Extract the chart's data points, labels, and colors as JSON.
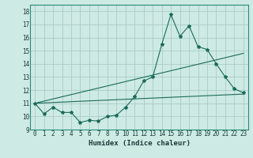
{
  "title": "",
  "xlabel": "Humidex (Indice chaleur)",
  "xlim": [
    -0.5,
    23.5
  ],
  "ylim": [
    9,
    18.5
  ],
  "xticks": [
    0,
    1,
    2,
    3,
    4,
    5,
    6,
    7,
    8,
    9,
    10,
    11,
    12,
    13,
    14,
    15,
    16,
    17,
    18,
    19,
    20,
    21,
    22,
    23
  ],
  "yticks": [
    9,
    10,
    11,
    12,
    13,
    14,
    15,
    16,
    17,
    18
  ],
  "bg_color": "#ceeae4",
  "grid_color": "#aaccc6",
  "line_color": "#1a6b5a",
  "line1_x": [
    0,
    1,
    2,
    3,
    4,
    5,
    6,
    7,
    8,
    9,
    10,
    11,
    12,
    13,
    14,
    15,
    16,
    17,
    18,
    19,
    20,
    21,
    22,
    23
  ],
  "line1_y": [
    11.0,
    10.2,
    10.7,
    10.3,
    10.3,
    9.55,
    9.7,
    9.65,
    10.0,
    10.1,
    10.7,
    11.5,
    12.7,
    13.0,
    15.5,
    17.75,
    16.1,
    16.9,
    15.3,
    15.1,
    14.0,
    13.0,
    12.1,
    11.8
  ],
  "line2_x": [
    0,
    23
  ],
  "line2_y": [
    11.0,
    14.8
  ],
  "line3_x": [
    0,
    23
  ],
  "line3_y": [
    11.0,
    11.7
  ],
  "marker_size": 3,
  "linewidth": 0.8,
  "tick_fontsize": 5.5,
  "xlabel_fontsize": 6.5
}
